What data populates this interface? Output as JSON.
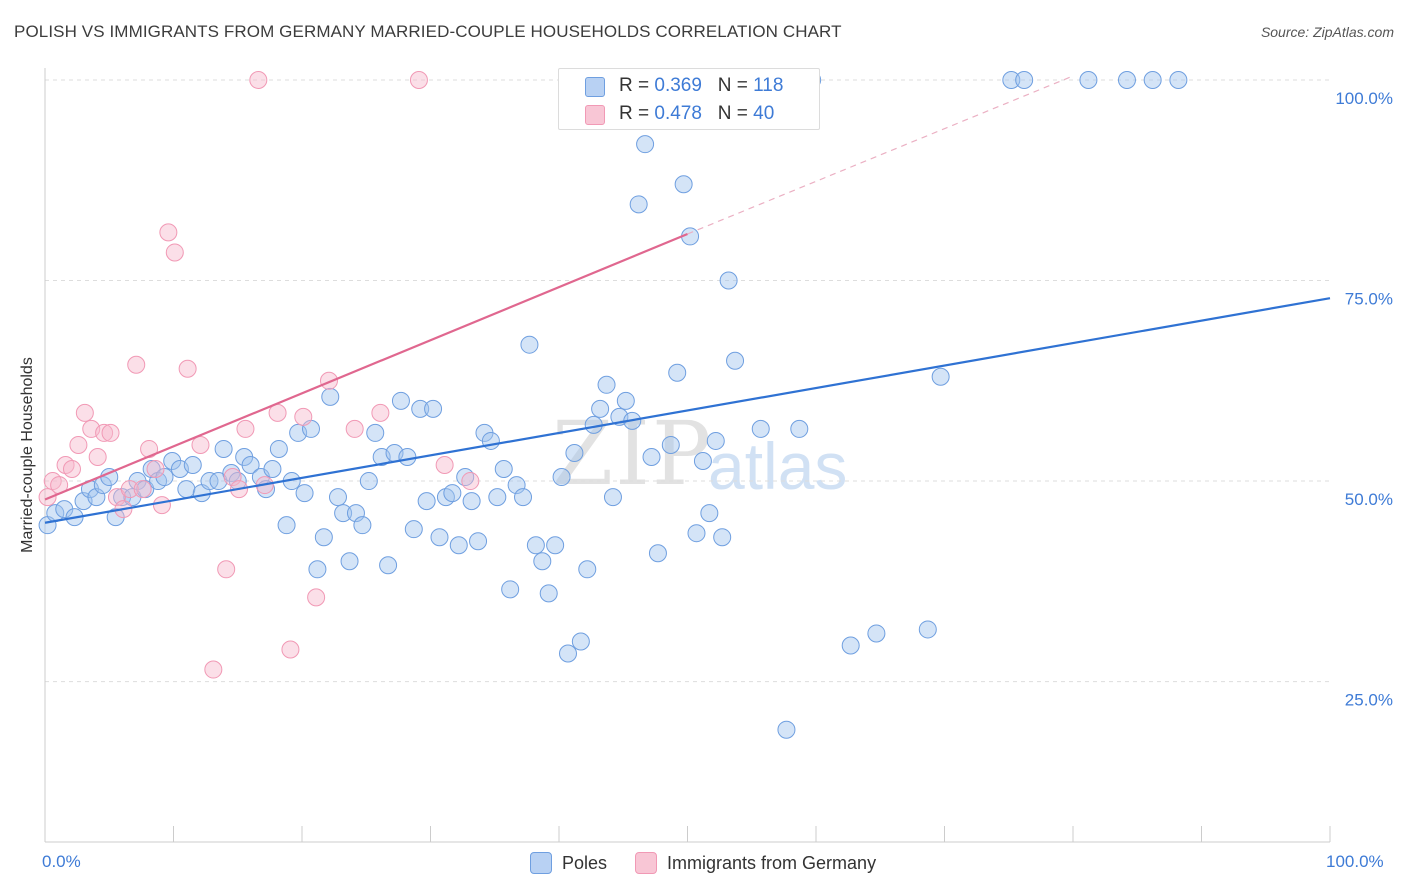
{
  "header": {
    "title": "POLISH VS IMMIGRANTS FROM GERMANY MARRIED-COUPLE HOUSEHOLDS CORRELATION CHART",
    "source": "Source: ZipAtlas.com"
  },
  "watermark": {
    "zip": "ZIP",
    "atlas": "atlas"
  },
  "legend": {
    "rows": [
      {
        "r_label": "R = ",
        "r_value": "0.369",
        "n_label": "N = ",
        "n_value": "118"
      },
      {
        "r_label": "R = ",
        "r_value": "0.478",
        "n_label": "N = ",
        "n_value": "40"
      }
    ]
  },
  "bottom_legend": {
    "poles": "Poles",
    "germany": "Immigrants from Germany"
  },
  "chart_data": {
    "type": "scatter",
    "ylabel": "Married-couple Households",
    "xlabel": "",
    "xlim": [
      0,
      100
    ],
    "ylim": [
      5,
      100
    ],
    "x_tick_labels": [
      "0.0%",
      "100.0%"
    ],
    "y_ticks": [
      {
        "value": 100,
        "label": "100.0%"
      },
      {
        "value": 75,
        "label": "75.0%"
      },
      {
        "value": 50,
        "label": "50.0%"
      },
      {
        "value": 25,
        "label": "25.0%"
      }
    ],
    "grid": true,
    "colors": {
      "poles": "#6f9fe0",
      "germany": "#f199b5",
      "poles_line": "#2f72d3",
      "germany_line": "#e0678f"
    },
    "series": [
      {
        "name": "Poles",
        "trend": {
          "x": [
            0,
            100
          ],
          "y": [
            44.8,
            72.8
          ]
        },
        "points": [
          [
            0.2,
            44.5
          ],
          [
            0.8,
            46
          ],
          [
            1.5,
            46.5
          ],
          [
            2.3,
            45.5
          ],
          [
            3,
            47.5
          ],
          [
            3.5,
            49
          ],
          [
            4,
            48
          ],
          [
            4.5,
            49.5
          ],
          [
            5,
            50.5
          ],
          [
            5.5,
            45.5
          ],
          [
            6,
            48
          ],
          [
            6.8,
            48
          ],
          [
            7.2,
            50
          ],
          [
            7.8,
            49
          ],
          [
            8.3,
            51.5
          ],
          [
            8.8,
            50
          ],
          [
            9.3,
            50.5
          ],
          [
            9.9,
            52.5
          ],
          [
            10.5,
            51.5
          ],
          [
            11,
            49
          ],
          [
            11.5,
            52
          ],
          [
            12.2,
            48.5
          ],
          [
            12.8,
            50
          ],
          [
            13.5,
            50
          ],
          [
            13.9,
            54
          ],
          [
            14.5,
            51
          ],
          [
            15,
            50
          ],
          [
            15.5,
            53
          ],
          [
            16,
            52
          ],
          [
            16.8,
            50.5
          ],
          [
            17.2,
            49
          ],
          [
            17.7,
            51.5
          ],
          [
            18.2,
            54
          ],
          [
            18.8,
            44.5
          ],
          [
            19.2,
            50
          ],
          [
            19.7,
            56
          ],
          [
            20.2,
            48.5
          ],
          [
            20.7,
            56.5
          ],
          [
            21.2,
            39
          ],
          [
            21.7,
            43
          ],
          [
            22.2,
            60.5
          ],
          [
            22.8,
            48
          ],
          [
            23.2,
            46
          ],
          [
            23.7,
            40
          ],
          [
            24.2,
            46
          ],
          [
            24.7,
            44.5
          ],
          [
            25.2,
            50
          ],
          [
            25.7,
            56
          ],
          [
            26.2,
            53
          ],
          [
            26.7,
            39.5
          ],
          [
            27.2,
            53.5
          ],
          [
            27.7,
            60
          ],
          [
            28.2,
            53
          ],
          [
            28.7,
            44
          ],
          [
            29.2,
            59
          ],
          [
            29.7,
            47.5
          ],
          [
            30.2,
            59
          ],
          [
            30.7,
            43
          ],
          [
            31.2,
            48
          ],
          [
            31.7,
            48.5
          ],
          [
            32.2,
            42
          ],
          [
            32.7,
            50.5
          ],
          [
            33.2,
            47.5
          ],
          [
            33.7,
            42.5
          ],
          [
            34.2,
            56
          ],
          [
            34.7,
            55
          ],
          [
            35.2,
            48
          ],
          [
            35.7,
            51.5
          ],
          [
            36.2,
            36.5
          ],
          [
            36.7,
            49.5
          ],
          [
            37.2,
            48
          ],
          [
            37.7,
            67
          ],
          [
            38.2,
            42
          ],
          [
            38.7,
            40
          ],
          [
            39.2,
            36
          ],
          [
            39.7,
            42
          ],
          [
            40.2,
            50.5
          ],
          [
            40.7,
            28.5
          ],
          [
            41.2,
            53.5
          ],
          [
            41.7,
            30
          ],
          [
            42.2,
            39
          ],
          [
            42.7,
            57
          ],
          [
            43.2,
            59
          ],
          [
            43.7,
            62
          ],
          [
            44.2,
            48
          ],
          [
            44.7,
            58
          ],
          [
            45.2,
            60
          ],
          [
            45.7,
            57.5
          ],
          [
            46.2,
            84.5
          ],
          [
            46.7,
            92
          ],
          [
            47.2,
            53
          ],
          [
            47.7,
            41
          ],
          [
            48.2,
            100
          ],
          [
            48.7,
            54.5
          ],
          [
            49.2,
            63.5
          ],
          [
            49.7,
            87
          ],
          [
            50.2,
            80.5
          ],
          [
            50.7,
            43.5
          ],
          [
            51.2,
            52.5
          ],
          [
            51.7,
            46
          ],
          [
            52.2,
            55
          ],
          [
            52.7,
            43
          ],
          [
            53.2,
            75
          ],
          [
            53.7,
            65
          ],
          [
            55.7,
            56.5
          ],
          [
            57.7,
            19
          ],
          [
            58.7,
            56.5
          ],
          [
            59.7,
            100
          ],
          [
            62.7,
            29.5
          ],
          [
            64.7,
            31
          ],
          [
            68.7,
            31.5
          ],
          [
            69.7,
            63
          ],
          [
            75.2,
            100
          ],
          [
            76.2,
            100
          ],
          [
            81.2,
            100
          ],
          [
            84.2,
            100
          ],
          [
            86.2,
            100
          ],
          [
            88.2,
            100
          ]
        ]
      },
      {
        "name": "Immigrants from Germany",
        "trend": {
          "x": [
            0,
            50
          ],
          "y": [
            47.7,
            80.8
          ]
        },
        "trend_dashed": {
          "x": [
            50,
            80
          ],
          "y": [
            80.8,
            100.5
          ]
        },
        "points": [
          [
            0.2,
            48
          ],
          [
            0.6,
            50
          ],
          [
            1.1,
            49.5
          ],
          [
            1.6,
            52
          ],
          [
            2.1,
            51.5
          ],
          [
            2.6,
            54.5
          ],
          [
            3.1,
            58.5
          ],
          [
            3.6,
            56.5
          ],
          [
            4.1,
            53
          ],
          [
            4.6,
            56
          ],
          [
            5.1,
            56
          ],
          [
            5.6,
            48
          ],
          [
            6.1,
            46.5
          ],
          [
            6.6,
            49
          ],
          [
            7.1,
            64.5
          ],
          [
            7.6,
            49
          ],
          [
            8.1,
            54
          ],
          [
            8.6,
            51.5
          ],
          [
            9.1,
            47
          ],
          [
            9.6,
            81
          ],
          [
            10.1,
            78.5
          ],
          [
            11.1,
            64
          ],
          [
            12.1,
            54.5
          ],
          [
            13.1,
            26.5
          ],
          [
            14.1,
            39
          ],
          [
            14.6,
            50.5
          ],
          [
            15.1,
            49
          ],
          [
            15.6,
            56.5
          ],
          [
            16.6,
            100
          ],
          [
            17.1,
            49.5
          ],
          [
            18.1,
            58.5
          ],
          [
            19.1,
            29
          ],
          [
            20.1,
            58
          ],
          [
            21.1,
            35.5
          ],
          [
            22.1,
            62.5
          ],
          [
            24.1,
            56.5
          ],
          [
            26.1,
            58.5
          ],
          [
            29.1,
            100
          ],
          [
            31.1,
            52
          ],
          [
            33.1,
            50
          ]
        ]
      }
    ]
  }
}
